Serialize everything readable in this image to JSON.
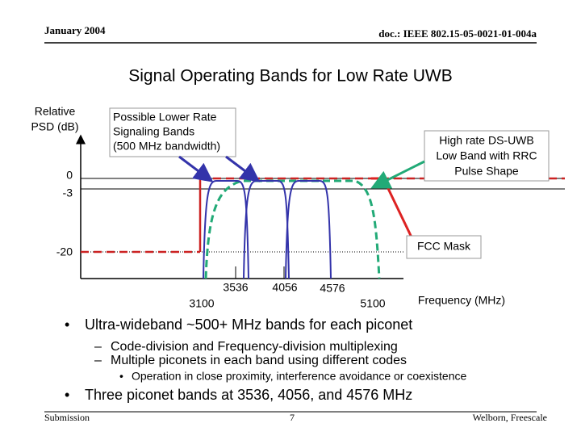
{
  "header": {
    "date": "January 2004",
    "doc": "doc.: IEEE 802.15-05-0021-01-004a"
  },
  "title": "Signal Operating Bands for Low Rate UWB",
  "diagram": {
    "y_axis_label": [
      "Relative",
      "PSD (dB)"
    ],
    "y_labels": [
      "0",
      "-3",
      "-20"
    ],
    "x_labels": [
      "3100",
      "3536",
      "4056",
      "4576",
      "5100"
    ],
    "x_axis_label": "Frequency (MHz)",
    "lower_rate_callout": [
      "Possible Lower Rate",
      "Signaling Bands",
      "(500 MHz bandwidth)"
    ],
    "high_rate_callout": [
      "High rate DS-UWB",
      "Low Band with RRC",
      "Pulse Shape"
    ],
    "fcc_callout": "FCC Mask"
  },
  "bullets": {
    "first": "Ultra-wideband ~500+ MHz bands for each piconet",
    "first_sub": [
      "Code-division and Frequency-division multiplexing",
      "Multiple piconets in each band using different codes"
    ],
    "first_sub_sub": "Operation in close proximity, interference avoidance or coexistence",
    "second": "Three piconet bands at 3536, 4056, and 4576 MHz"
  },
  "footer": {
    "left": "Submission",
    "page": "7",
    "right": "Welborn, Freescale"
  }
}
